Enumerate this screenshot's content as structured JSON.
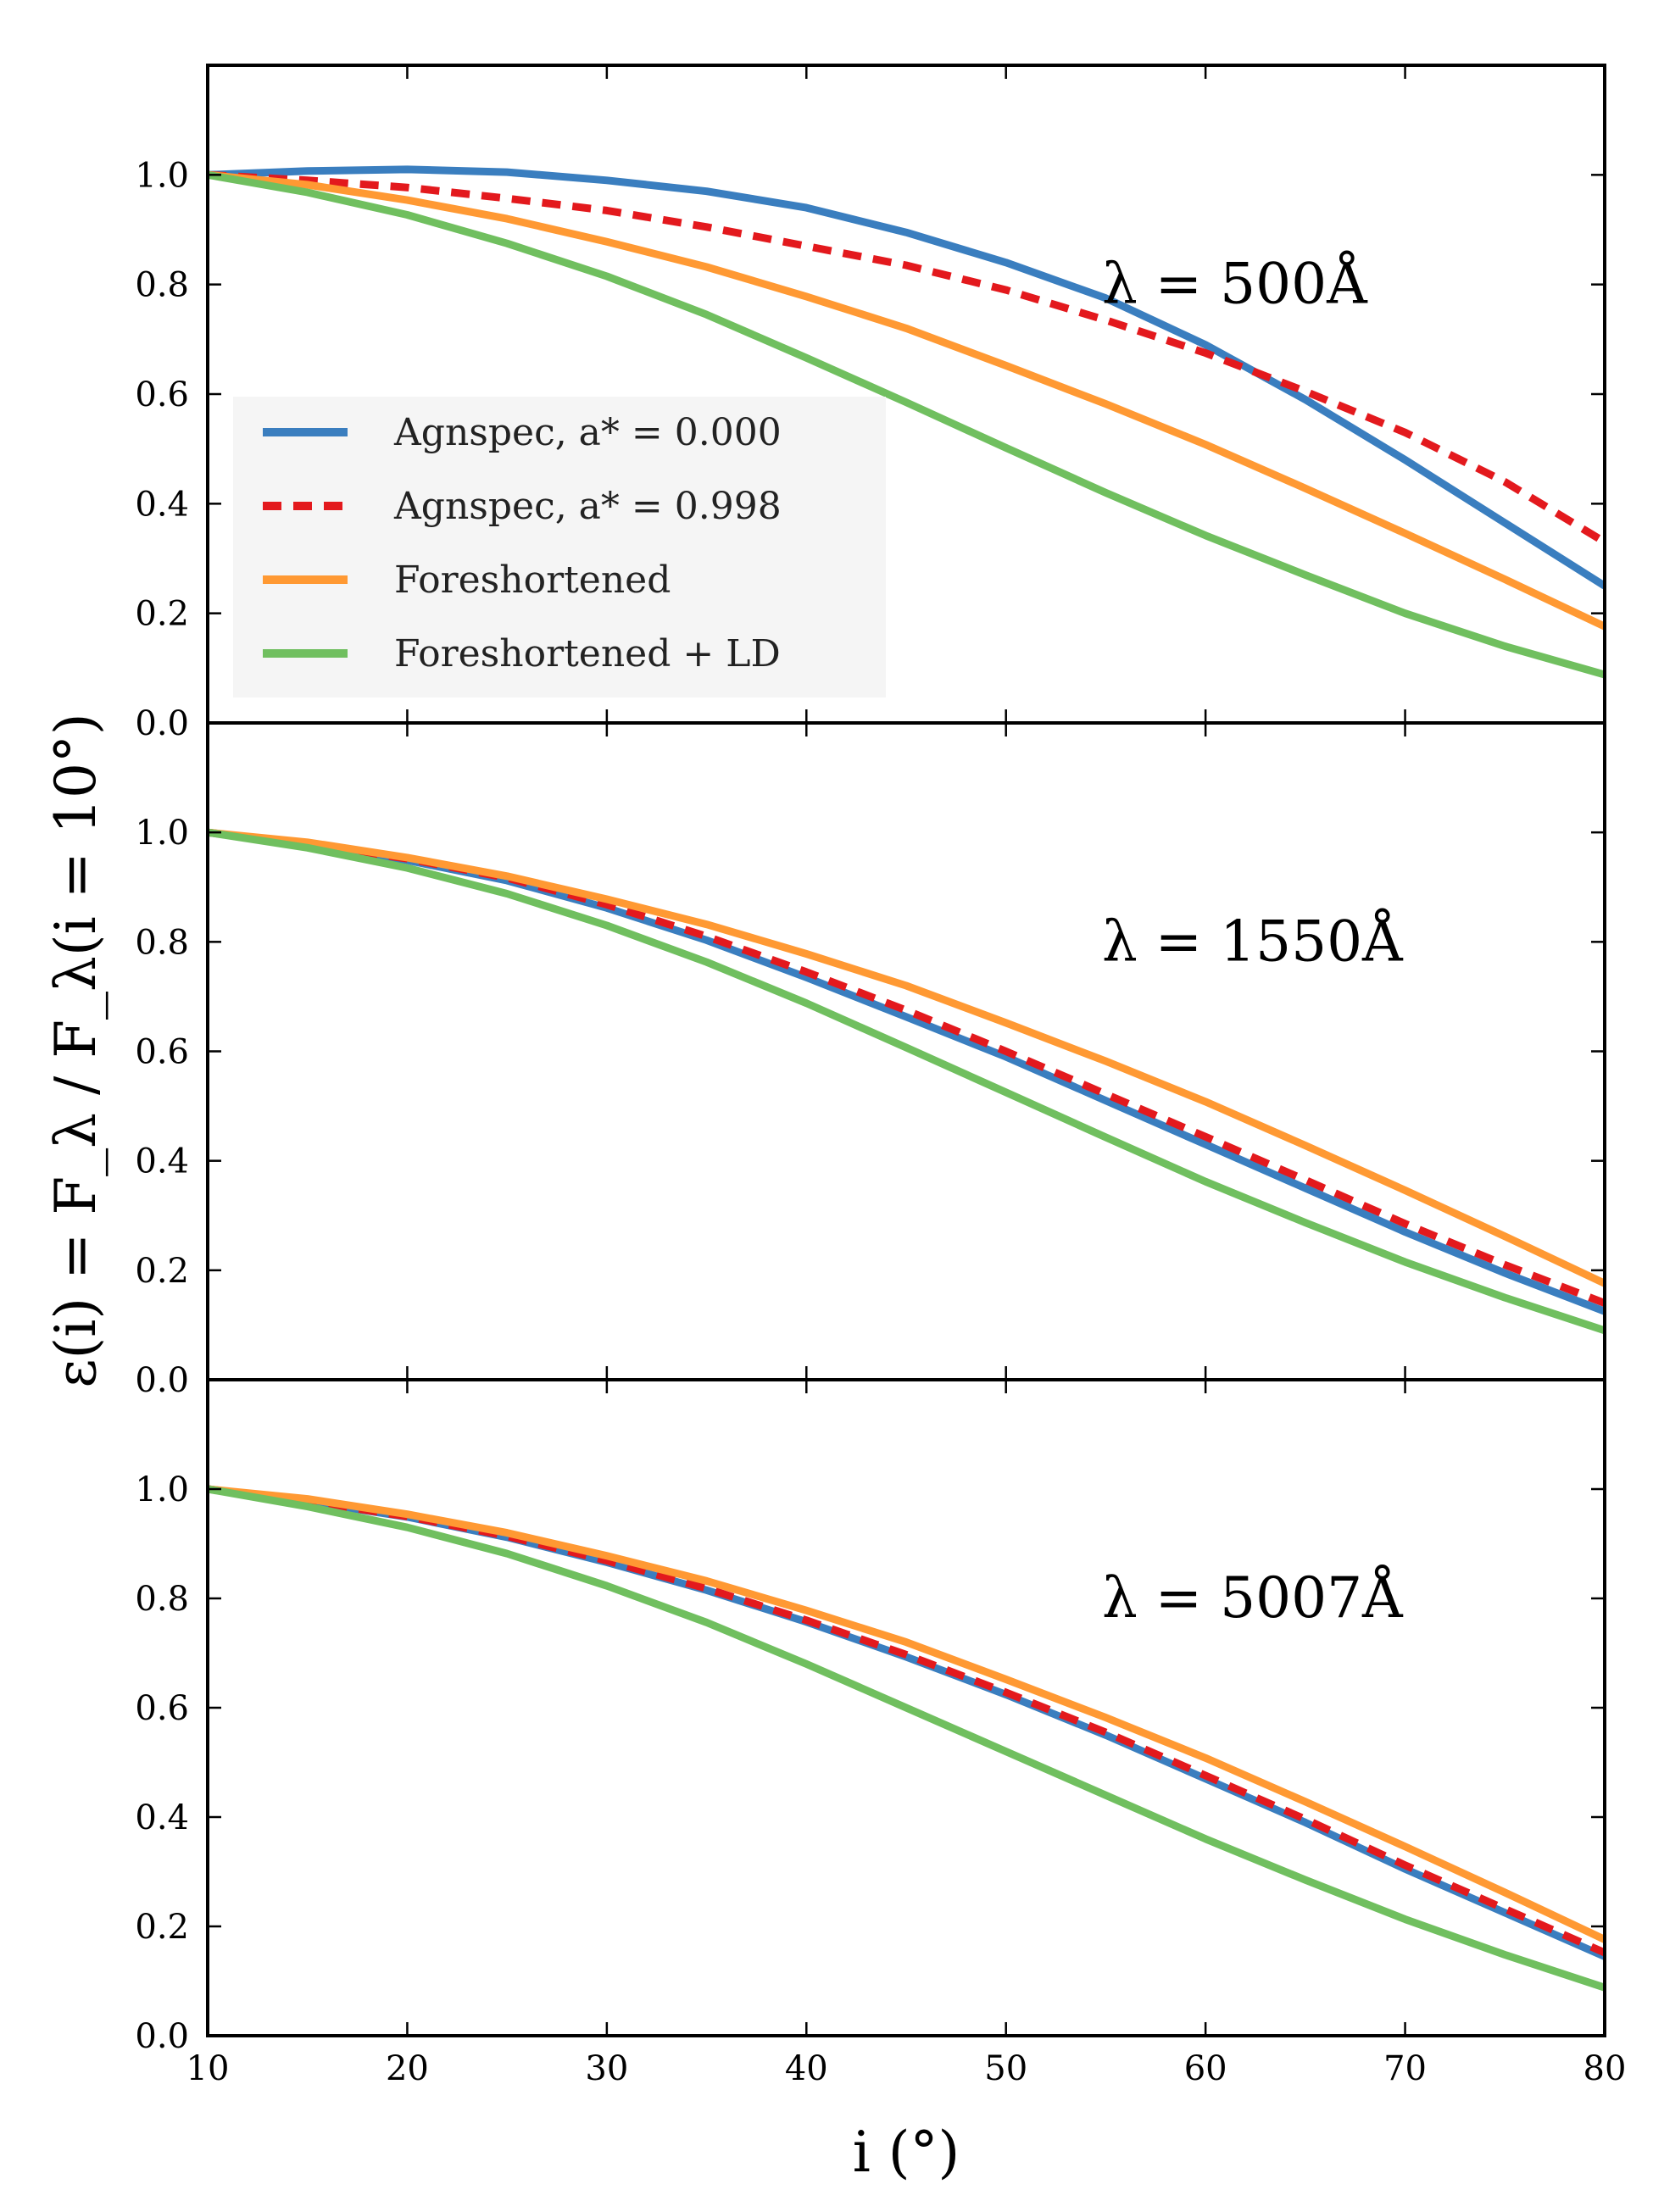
{
  "chart_data": {
    "type": "line",
    "shared_x": true,
    "xlabel": "i (°)",
    "ylabel": "ε(i) = F_λ / F_λ(i = 10°)",
    "xlim": [
      10,
      80
    ],
    "ylim": [
      0,
      1.2
    ],
    "x_ticks": [
      "10",
      "20",
      "30",
      "40",
      "50",
      "60",
      "70",
      "80"
    ],
    "y_ticks": [
      "0.0",
      "0.2",
      "0.4",
      "0.6",
      "0.8",
      "1.0"
    ],
    "grid": false,
    "legend_placement": "lower-left of top panel",
    "colors": {
      "agnspec_a0": "#3a7ebf",
      "agnspec_a0998": "#e3191d",
      "foreshortened": "#ff9933",
      "foreshortened_ld": "#70bf5f"
    },
    "legend": [
      {
        "label": "Agnspec, a* = 0.000",
        "color": "#3a7ebf",
        "style": "solid"
      },
      {
        "label": "Agnspec, a* = 0.998",
        "color": "#e3191d",
        "style": "dashed"
      },
      {
        "label": "Foreshortened",
        "color": "#ff9933",
        "style": "solid"
      },
      {
        "label": "Foreshortened + LD",
        "color": "#70bf5f",
        "style": "solid"
      }
    ],
    "x": [
      10,
      15,
      20,
      25,
      30,
      35,
      40,
      45,
      50,
      55,
      60,
      65,
      70,
      75,
      80
    ],
    "panels": [
      {
        "annotation": "λ = 500Å",
        "series": [
          {
            "name": "Agnspec, a* = 0.000",
            "values": [
              1.0,
              1.007,
              1.01,
              1.005,
              0.99,
              0.97,
              0.94,
              0.895,
              0.84,
              0.775,
              0.69,
              0.59,
              0.48,
              0.365,
              0.25
            ]
          },
          {
            "name": "Agnspec, a* = 0.998",
            "values": [
              1.0,
              0.99,
              0.977,
              0.957,
              0.935,
              0.905,
              0.87,
              0.835,
              0.79,
              0.735,
              0.675,
              0.605,
              0.53,
              0.44,
              0.33
            ]
          },
          {
            "name": "Foreshortened",
            "values": [
              1.0,
              0.982,
              0.954,
              0.92,
              0.878,
              0.832,
              0.778,
              0.72,
              0.652,
              0.582,
              0.508,
              0.428,
              0.346,
              0.262,
              0.176
            ]
          },
          {
            "name": "Foreshortened + LD",
            "values": [
              1.0,
              0.968,
              0.927,
              0.875,
              0.815,
              0.745,
              0.666,
              0.585,
              0.502,
              0.42,
              0.342,
              0.27,
              0.2,
              0.14,
              0.088
            ]
          }
        ]
      },
      {
        "annotation": "λ = 1550Å",
        "series": [
          {
            "name": "Agnspec, a* = 0.000",
            "values": [
              1.0,
              0.977,
              0.949,
              0.912,
              0.862,
              0.803,
              0.735,
              0.663,
              0.59,
              0.51,
              0.43,
              0.35,
              0.27,
              0.195,
              0.125
            ]
          },
          {
            "name": "Agnspec, a* = 0.998",
            "values": [
              1.0,
              0.978,
              0.952,
              0.917,
              0.868,
              0.81,
              0.745,
              0.675,
              0.6,
              0.522,
              0.444,
              0.365,
              0.285,
              0.21,
              0.14
            ]
          },
          {
            "name": "Foreshortened",
            "values": [
              1.0,
              0.982,
              0.954,
              0.92,
              0.878,
              0.832,
              0.778,
              0.72,
              0.652,
              0.582,
              0.508,
              0.428,
              0.346,
              0.262,
              0.176
            ]
          },
          {
            "name": "Foreshortened + LD",
            "values": [
              1.0,
              0.972,
              0.935,
              0.888,
              0.83,
              0.763,
              0.688,
              0.607,
              0.525,
              0.443,
              0.362,
              0.287,
              0.215,
              0.15,
              0.09
            ]
          }
        ]
      },
      {
        "annotation": "λ = 5007Å",
        "series": [
          {
            "name": "Agnspec, a* = 0.000",
            "values": [
              1.0,
              0.977,
              0.949,
              0.912,
              0.866,
              0.815,
              0.757,
              0.693,
              0.624,
              0.55,
              0.47,
              0.39,
              0.305,
              0.225,
              0.145
            ]
          },
          {
            "name": "Agnspec, a* = 0.998",
            "values": [
              1.0,
              0.978,
              0.95,
              0.914,
              0.869,
              0.818,
              0.76,
              0.697,
              0.628,
              0.555,
              0.476,
              0.396,
              0.312,
              0.232,
              0.152
            ]
          },
          {
            "name": "Foreshortened",
            "values": [
              1.0,
              0.982,
              0.954,
              0.92,
              0.878,
              0.832,
              0.778,
              0.72,
              0.652,
              0.582,
              0.508,
              0.428,
              0.346,
              0.262,
              0.176
            ]
          },
          {
            "name": "Foreshortened + LD",
            "values": [
              1.0,
              0.968,
              0.93,
              0.882,
              0.823,
              0.756,
              0.68,
              0.6,
              0.52,
              0.44,
              0.36,
              0.285,
              0.213,
              0.148,
              0.088
            ]
          }
        ]
      }
    ]
  }
}
